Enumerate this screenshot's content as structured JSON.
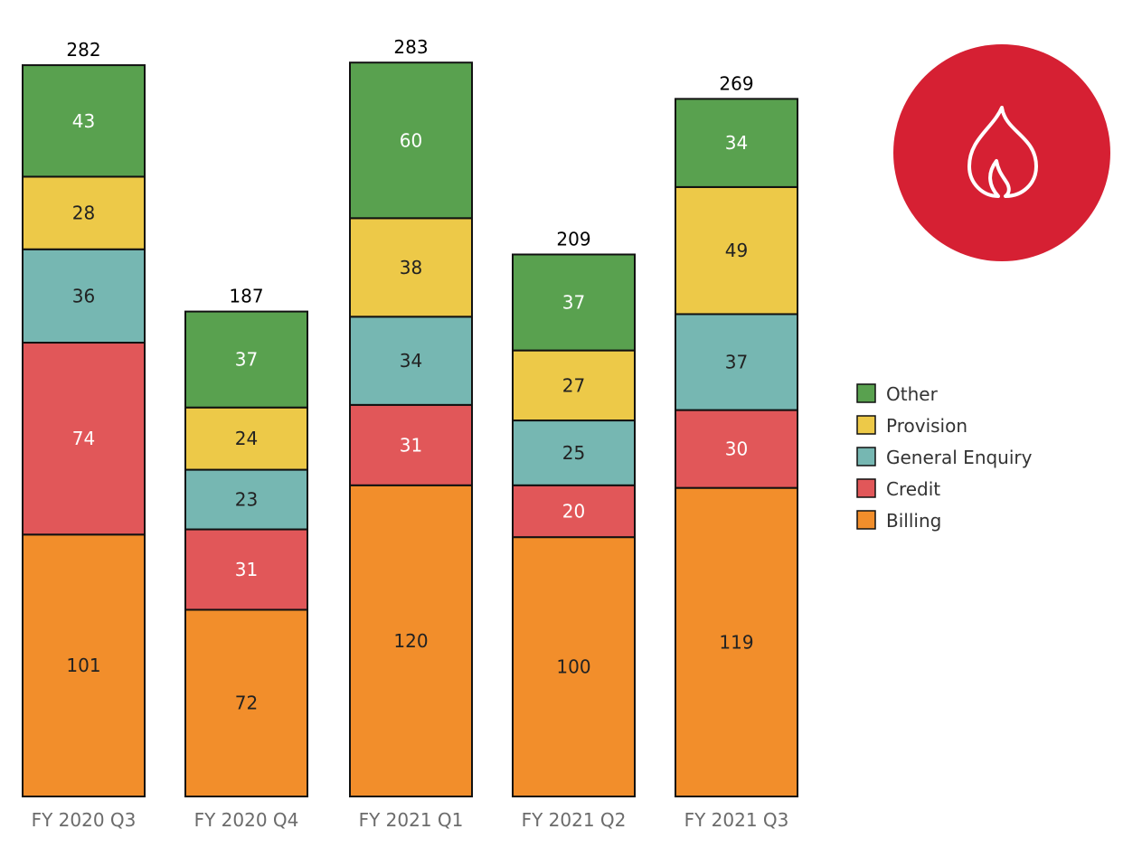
{
  "chart_data": {
    "type": "bar",
    "stacked": true,
    "categories": [
      "FY 2020 Q3",
      "FY 2020 Q4",
      "FY 2021 Q1",
      "FY 2021 Q2",
      "FY 2021 Q3"
    ],
    "series": [
      {
        "name": "Billing",
        "color": "#f28e2b",
        "label_color": "#222222",
        "values": [
          101,
          72,
          120,
          100,
          119
        ]
      },
      {
        "name": "Credit",
        "color": "#e15759",
        "label_color": "#ffffff",
        "values": [
          74,
          31,
          31,
          20,
          30
        ]
      },
      {
        "name": "General Enquiry",
        "color": "#76b7b2",
        "label_color": "#222222",
        "values": [
          36,
          23,
          34,
          25,
          37
        ]
      },
      {
        "name": "Provision",
        "color": "#edc948",
        "label_color": "#222222",
        "values": [
          28,
          24,
          38,
          27,
          49
        ]
      },
      {
        "name": "Other",
        "color": "#59a14f",
        "label_color": "#ffffff",
        "values": [
          43,
          37,
          60,
          37,
          34
        ]
      }
    ],
    "totals": [
      282,
      187,
      283,
      209,
      269
    ],
    "legend_order": [
      "Other",
      "Provision",
      "General Enquiry",
      "Credit",
      "Billing"
    ],
    "legend_position": "right",
    "ylim": [
      0,
      283
    ],
    "grid": false,
    "xlabel": "",
    "ylabel": ""
  },
  "badge": {
    "icon": "flame-icon",
    "color": "#d62033"
  }
}
